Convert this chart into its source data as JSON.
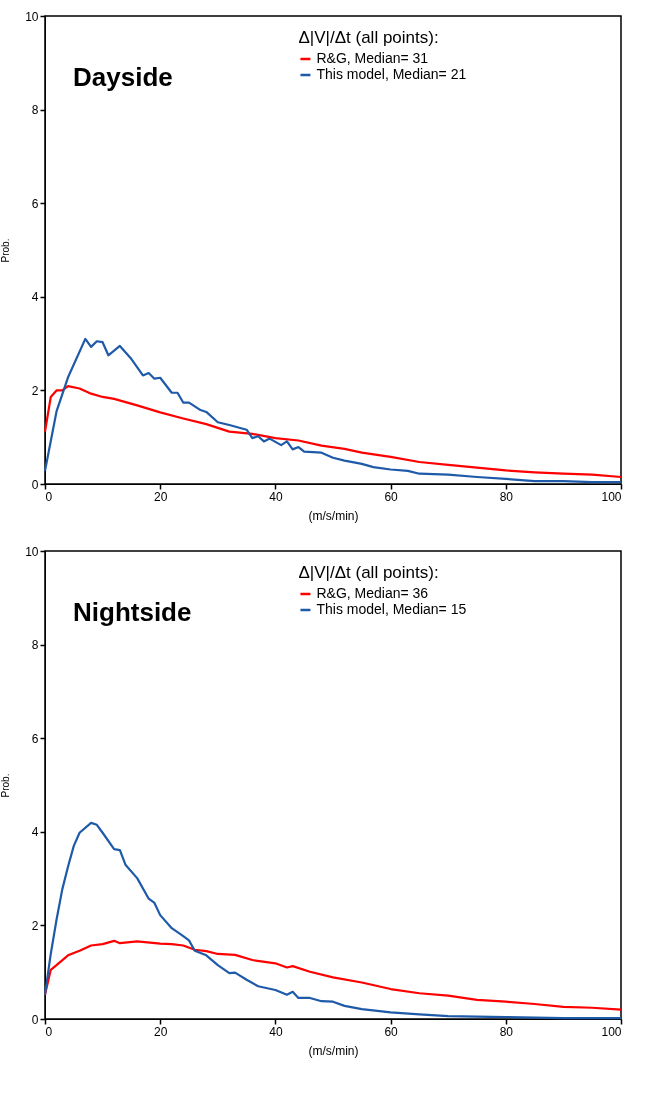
{
  "chart_data": [
    {
      "type": "line",
      "annotations": [
        "Dayside"
      ],
      "legend_title": "Δ|V|/Δt (all points):",
      "legend": "top",
      "xlabel": "(m/s/min)",
      "ylabel": "Prob.",
      "xlim": [
        0,
        100
      ],
      "xticks": [
        0,
        20,
        40,
        60,
        80,
        100
      ],
      "ylim": [
        0,
        10
      ],
      "yticks": [
        0,
        2,
        4,
        6,
        8,
        10
      ],
      "grid": false,
      "series": [
        {
          "name": "R&G, Median=  31",
          "color": "#ff0000",
          "x": [
            0,
            1,
            2,
            3,
            4,
            6,
            8,
            10,
            12,
            14,
            16,
            20,
            24,
            28,
            32,
            36,
            40,
            44,
            48,
            52,
            55,
            60,
            65,
            70,
            75,
            80,
            85,
            90,
            95,
            100
          ],
          "values": [
            1.12,
            1.86,
            2.0,
            2.0,
            2.09,
            2.04,
            1.93,
            1.86,
            1.82,
            1.75,
            1.68,
            1.53,
            1.4,
            1.28,
            1.12,
            1.07,
            0.98,
            0.93,
            0.82,
            0.75,
            0.67,
            0.58,
            0.47,
            0.41,
            0.35,
            0.29,
            0.25,
            0.22,
            0.2,
            0.15
          ]
        },
        {
          "name": "This model, Median= 21",
          "color": "#1e5aa8",
          "x": [
            0,
            2,
            4,
            7,
            8,
            9,
            10,
            11,
            13,
            15,
            17,
            18,
            19,
            20,
            22,
            23,
            24,
            25,
            27,
            28,
            30,
            32,
            35,
            36,
            37,
            38,
            39,
            41,
            42,
            43,
            44,
            45,
            48,
            50,
            52,
            55,
            57,
            60,
            63,
            65,
            70,
            75,
            80,
            85,
            90,
            95,
            100
          ],
          "values": [
            0.28,
            1.55,
            2.28,
            3.1,
            2.93,
            3.05,
            3.03,
            2.75,
            2.95,
            2.67,
            2.32,
            2.37,
            2.25,
            2.27,
            1.95,
            1.95,
            1.74,
            1.74,
            1.58,
            1.54,
            1.32,
            1.26,
            1.16,
            0.98,
            1.02,
            0.91,
            0.97,
            0.83,
            0.91,
            0.74,
            0.79,
            0.69,
            0.67,
            0.56,
            0.5,
            0.43,
            0.36,
            0.31,
            0.28,
            0.22,
            0.2,
            0.15,
            0.11,
            0.06,
            0.06,
            0.04,
            0.04
          ]
        }
      ]
    },
    {
      "type": "line",
      "annotations": [
        "Nightside"
      ],
      "legend_title": "Δ|V|/Δt (all points):",
      "legend": "top",
      "xlabel": "(m/s/min)",
      "ylabel": "Prob.",
      "xlim": [
        0,
        100
      ],
      "xticks": [
        0,
        20,
        40,
        60,
        80,
        100
      ],
      "ylim": [
        0,
        10
      ],
      "yticks": [
        0,
        2,
        4,
        6,
        8,
        10
      ],
      "grid": false,
      "series": [
        {
          "name": "R&G, Median=  36",
          "color": "#ff0000",
          "x": [
            0,
            1,
            2,
            4,
            6,
            8,
            10,
            12,
            13,
            16,
            20,
            22,
            24,
            26,
            28,
            30,
            33,
            36,
            40,
            42,
            43,
            46,
            50,
            55,
            60,
            65,
            70,
            75,
            80,
            85,
            90,
            95,
            100
          ],
          "values": [
            0.52,
            1.05,
            1.15,
            1.36,
            1.46,
            1.57,
            1.6,
            1.67,
            1.62,
            1.66,
            1.61,
            1.6,
            1.57,
            1.48,
            1.45,
            1.39,
            1.37,
            1.26,
            1.19,
            1.1,
            1.13,
            1.01,
            0.89,
            0.78,
            0.64,
            0.55,
            0.5,
            0.41,
            0.37,
            0.32,
            0.26,
            0.24,
            0.2
          ]
        },
        {
          "name": "This model, Median= 15",
          "color": "#1e5aa8",
          "x": [
            0,
            1,
            2,
            3,
            4,
            5,
            6,
            8,
            9,
            10,
            12,
            13,
            14,
            16,
            18,
            19,
            20,
            22,
            24,
            25,
            26,
            28,
            30,
            32,
            33,
            35,
            37,
            40,
            42,
            43,
            44,
            46,
            48,
            50,
            52,
            55,
            60,
            65,
            70,
            80,
            90,
            100
          ],
          "values": [
            0.52,
            1.39,
            2.12,
            2.77,
            3.26,
            3.7,
            3.98,
            4.19,
            4.15,
            3.98,
            3.63,
            3.61,
            3.29,
            3.01,
            2.57,
            2.48,
            2.22,
            1.94,
            1.77,
            1.68,
            1.46,
            1.36,
            1.15,
            0.98,
            0.99,
            0.84,
            0.7,
            0.62,
            0.52,
            0.58,
            0.45,
            0.45,
            0.38,
            0.37,
            0.28,
            0.21,
            0.14,
            0.1,
            0.06,
            0.04,
            0.02,
            0.02
          ]
        }
      ]
    }
  ]
}
